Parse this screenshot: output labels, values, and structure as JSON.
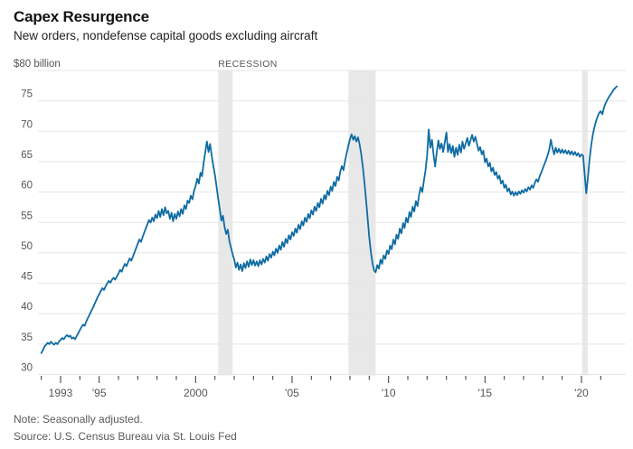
{
  "header": {
    "title": "Capex Resurgence",
    "subtitle": "New orders, nondefense capital goods excluding aircraft"
  },
  "footer": {
    "note": "Note: Seasonally adjusted.",
    "source": "Source: U.S. Census Bureau via St. Louis Fed"
  },
  "chart_data": {
    "type": "line",
    "title": "Capex Resurgence",
    "subtitle": "New orders, nondefense capital goods excluding aircraft",
    "series_name": "New orders, nondefense capital goods excluding aircraft (billions of dollars, monthly)",
    "unit_label": "$80 billion",
    "recession_label": "RECESSION",
    "frequency": "monthly",
    "start_year": 1992,
    "ylim": [
      30,
      80
    ],
    "y_ticks": [
      30,
      35,
      40,
      45,
      50,
      55,
      60,
      65,
      70,
      75,
      80
    ],
    "x_range": [
      1992.0,
      2021.83
    ],
    "x_tick_years_minor_step": 1,
    "x_tick_labels": [
      {
        "year": 1993,
        "label": "1993"
      },
      {
        "year": 1995,
        "label": "'95"
      },
      {
        "year": 2000,
        "label": "2000"
      },
      {
        "year": 2005,
        "label": "'05"
      },
      {
        "year": 2010,
        "label": "'10"
      },
      {
        "year": 2015,
        "label": "'15"
      },
      {
        "year": 2020,
        "label": "'20"
      }
    ],
    "recessions": [
      [
        2001.17,
        2001.92
      ],
      [
        2007.92,
        2009.33
      ],
      [
        2020.04,
        2020.33
      ]
    ],
    "grid": true,
    "legend": "none",
    "colors": {
      "line": "#0e6ba3",
      "grid": "#e5e5e5",
      "recession_band": "#e8e8e8",
      "tick": "#333333",
      "axis_label": "#555555",
      "annotation": "#555555"
    },
    "values": [
      33.5,
      34.0,
      34.6,
      34.9,
      35.2,
      35.0,
      35.4,
      35.1,
      34.9,
      35.2,
      35.0,
      35.4,
      35.7,
      36.0,
      35.8,
      36.2,
      36.5,
      36.2,
      36.4,
      35.9,
      36.1,
      35.8,
      36.3,
      36.8,
      37.3,
      37.8,
      38.2,
      38.0,
      38.7,
      39.3,
      39.8,
      40.4,
      40.9,
      41.5,
      42.1,
      42.7,
      43.2,
      43.7,
      44.2,
      43.9,
      44.5,
      45.0,
      45.4,
      45.1,
      45.6,
      45.9,
      45.6,
      46.1,
      46.6,
      47.2,
      46.9,
      47.6,
      48.2,
      47.8,
      48.5,
      49.1,
      48.7,
      49.4,
      50.1,
      50.8,
      51.5,
      52.2,
      51.8,
      52.6,
      53.3,
      54.0,
      54.7,
      55.4,
      55.0,
      55.8,
      55.2,
      56.3,
      55.7,
      56.9,
      55.9,
      57.2,
      56.2,
      57.5,
      56.5,
      56.9,
      55.6,
      56.6,
      55.2,
      56.4,
      55.6,
      56.8,
      56.0,
      57.2,
      56.4,
      57.8,
      57.2,
      58.6,
      58.2,
      59.4,
      58.8,
      60.2,
      61.0,
      62.2,
      61.4,
      63.2,
      62.6,
      64.8,
      66.6,
      68.3,
      66.6,
      67.9,
      66.0,
      64.3,
      62.8,
      61.0,
      59.0,
      57.2,
      55.3,
      56.1,
      54.3,
      53.1,
      53.8,
      51.9,
      50.9,
      49.8,
      48.9,
      47.6,
      48.4,
      47.2,
      48.1,
      47.0,
      48.3,
      47.5,
      48.6,
      47.7,
      48.9,
      48.0,
      48.8,
      47.9,
      48.6,
      47.8,
      48.8,
      48.1,
      49.0,
      48.4,
      49.4,
      48.7,
      49.8,
      49.2,
      50.2,
      49.6,
      50.7,
      50.0,
      51.2,
      50.5,
      51.8,
      51.0,
      52.3,
      51.6,
      52.9,
      52.2,
      53.4,
      52.8,
      54.0,
      53.3,
      54.6,
      53.9,
      55.2,
      54.5,
      55.8,
      55.1,
      56.4,
      55.7,
      57.0,
      56.3,
      57.6,
      56.9,
      58.2,
      57.5,
      58.9,
      58.1,
      59.5,
      58.8,
      60.2,
      59.5,
      60.9,
      60.2,
      61.7,
      61.0,
      62.5,
      61.9,
      63.4,
      64.3,
      63.6,
      65.2,
      66.4,
      67.6,
      68.7,
      69.5,
      68.6,
      69.2,
      68.3,
      69.0,
      67.8,
      66.3,
      64.2,
      61.6,
      58.7,
      55.6,
      52.6,
      50.2,
      48.3,
      47.1,
      46.8,
      48.0,
      47.4,
      48.9,
      48.2,
      49.6,
      49.0,
      50.4,
      49.8,
      51.2,
      50.6,
      52.2,
      51.4,
      53.0,
      52.3,
      54.0,
      53.2,
      54.9,
      54.1,
      55.8,
      55.0,
      56.7,
      55.9,
      57.6,
      56.8,
      58.5,
      57.7,
      59.5,
      60.8,
      60.0,
      61.9,
      63.5,
      66.0,
      70.3,
      67.3,
      68.6,
      66.2,
      64.2,
      66.6,
      68.5,
      67.1,
      68.0,
      66.6,
      68.2,
      69.8,
      66.6,
      67.9,
      66.4,
      67.6,
      65.8,
      67.3,
      66.1,
      67.8,
      66.5,
      68.3,
      67.1,
      68.0,
      68.9,
      67.6,
      68.5,
      69.4,
      68.3,
      69.1,
      68.0,
      66.8,
      67.4,
      66.2,
      66.8,
      64.9,
      65.5,
      64.2,
      64.8,
      63.4,
      64.0,
      62.8,
      63.3,
      62.2,
      62.7,
      61.4,
      61.9,
      60.7,
      61.2,
      60.1,
      60.6,
      59.6,
      60.1,
      59.4,
      60.0,
      59.5,
      60.1,
      59.7,
      60.3,
      59.9,
      60.5,
      60.1,
      60.8,
      60.4,
      61.1,
      60.7,
      61.5,
      62.1,
      61.7,
      62.6,
      63.2,
      63.9,
      64.6,
      65.3,
      66.1,
      67.0,
      68.6,
      67.2,
      66.2,
      67.3,
      66.5,
      67.1,
      66.4,
      67.0,
      66.4,
      66.9,
      66.3,
      66.8,
      66.2,
      66.7,
      66.1,
      66.6,
      66.0,
      66.4,
      65.8,
      66.2,
      66.0,
      63.0,
      59.8,
      62.3,
      65.3,
      67.6,
      69.3,
      70.6,
      71.6,
      72.4,
      73.0,
      73.3,
      72.8,
      73.9,
      74.6,
      75.1,
      75.6,
      76.0,
      76.4,
      76.8,
      77.1,
      77.4
    ]
  }
}
